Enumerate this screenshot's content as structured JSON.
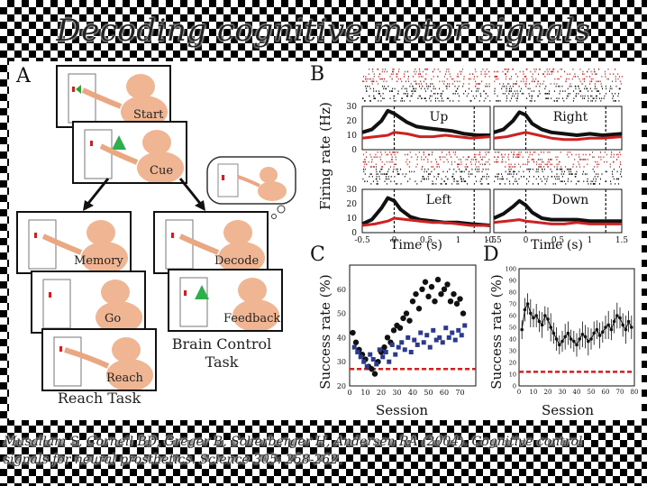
{
  "slide_title": "Decoding cognitive motor signals",
  "caption_lines": [
    "Musallam S, Corneil BD, Greger B, Scherberger H, Andersen RA (2004). Cognitive control",
    "signals for neural prosthetics. Science 305: 258-262."
  ],
  "panel_a": {
    "letter": "A",
    "boxes": [
      "Start",
      "Cue",
      "Memory",
      "Go",
      "Reach",
      "Decode",
      "Feedback"
    ],
    "reach_caption": "Reach Task",
    "brain_caption_lines": [
      "Brain Control",
      "Task"
    ]
  },
  "panel_b": {
    "letter": "B",
    "ylabel": "Firing rate (Hz)",
    "xlabel": "Time (s)",
    "subplots": [
      "Up",
      "Right",
      "Left",
      "Down"
    ],
    "xticks": [
      "-0.5",
      "0",
      "0.5",
      "1",
      "1.5"
    ],
    "yticks": [
      "0",
      "10",
      "20",
      "30"
    ]
  },
  "panel_c": {
    "letter": "C",
    "ylabel": "Success rate (%)",
    "xlabel": "Session"
  },
  "panel_d": {
    "letter": "D",
    "ylabel": "Success rate (%)",
    "xlabel": "Session"
  },
  "chart_data": [
    {
      "type": "line",
      "panel": "B",
      "xlabel": "Time (s)",
      "ylabel": "Firing rate (Hz)",
      "xlim": [
        -0.5,
        1.5
      ],
      "ylim": [
        0,
        30
      ],
      "subplots": [
        {
          "label": "Up",
          "series": [
            {
              "color": "#111111",
              "x": [
                -0.5,
                -0.35,
                -0.2,
                -0.1,
                0,
                0.1,
                0.2,
                0.35,
                0.5,
                0.7,
                0.9,
                1.1,
                1.3,
                1.5
              ],
              "y": [
                12,
                14,
                20,
                27,
                25,
                22,
                19,
                16,
                15,
                14,
                13,
                11,
                10,
                10
              ]
            },
            {
              "color": "#cc2222",
              "x": [
                -0.5,
                -0.3,
                -0.1,
                0,
                0.2,
                0.4,
                0.6,
                0.8,
                1.0,
                1.2,
                1.5
              ],
              "y": [
                8,
                9,
                10,
                12,
                11,
                9,
                9,
                10,
                9,
                8,
                9
              ]
            }
          ]
        },
        {
          "label": "Right",
          "series": [
            {
              "color": "#111111",
              "x": [
                -0.5,
                -0.35,
                -0.2,
                -0.1,
                0,
                0.1,
                0.25,
                0.4,
                0.6,
                0.8,
                1.0,
                1.2,
                1.5
              ],
              "y": [
                12,
                14,
                20,
                26,
                24,
                18,
                14,
                12,
                11,
                10,
                11,
                10,
                11
              ]
            },
            {
              "color": "#cc2222",
              "x": [
                -0.5,
                -0.3,
                -0.1,
                0,
                0.2,
                0.4,
                0.6,
                0.8,
                1.0,
                1.2,
                1.5
              ],
              "y": [
                8,
                9,
                11,
                12,
                10,
                8,
                7,
                7,
                8,
                8,
                9
              ]
            }
          ]
        },
        {
          "label": "Left",
          "series": [
            {
              "color": "#111111",
              "x": [
                -0.5,
                -0.35,
                -0.2,
                -0.1,
                0,
                0.1,
                0.25,
                0.4,
                0.6,
                0.8,
                1.0,
                1.2,
                1.5
              ],
              "y": [
                6,
                9,
                17,
                24,
                22,
                16,
                11,
                9,
                8,
                7,
                7,
                6,
                5
              ]
            },
            {
              "color": "#cc2222",
              "x": [
                -0.5,
                -0.3,
                -0.1,
                0,
                0.2,
                0.4,
                0.6,
                0.8,
                1.0,
                1.2,
                1.5
              ],
              "y": [
                5,
                6,
                8,
                10,
                9,
                8,
                7,
                7,
                6,
                5,
                5
              ]
            }
          ]
        },
        {
          "label": "Down",
          "series": [
            {
              "color": "#111111",
              "x": [
                -0.5,
                -0.35,
                -0.2,
                -0.1,
                0,
                0.1,
                0.25,
                0.4,
                0.6,
                0.8,
                1.0,
                1.2,
                1.5
              ],
              "y": [
                10,
                13,
                18,
                22,
                19,
                14,
                10,
                9,
                9,
                9,
                8,
                8,
                8
              ]
            },
            {
              "color": "#cc2222",
              "x": [
                -0.5,
                -0.3,
                -0.1,
                0,
                0.2,
                0.4,
                0.6,
                0.8,
                1.0,
                1.2,
                1.5
              ],
              "y": [
                7,
                8,
                9,
                8,
                7,
                6,
                6,
                7,
                6,
                6,
                6
              ]
            }
          ]
        }
      ]
    },
    {
      "type": "scatter",
      "panel": "C",
      "xlabel": "Session",
      "ylabel": "Success rate (%)",
      "xlim": [
        0,
        80
      ],
      "ylim": [
        20,
        70
      ],
      "xticks": [
        0,
        10,
        20,
        30,
        40,
        50,
        60,
        70
      ],
      "yticks": [
        20,
        30,
        40,
        50,
        60
      ],
      "chance_level": 27,
      "series": [
        {
          "color": "#111111",
          "marker": "circle",
          "x": [
            2,
            4,
            6,
            8,
            10,
            12,
            14,
            16,
            18,
            20,
            22,
            24,
            26,
            28,
            30,
            32,
            34,
            36,
            38,
            40,
            42,
            44,
            46,
            48,
            50,
            52,
            54,
            56,
            58,
            60,
            62,
            64,
            66,
            68,
            70,
            72
          ],
          "y": [
            42,
            38,
            35,
            33,
            31,
            28,
            27,
            25,
            30,
            34,
            36,
            40,
            38,
            43,
            45,
            44,
            48,
            50,
            47,
            55,
            58,
            52,
            60,
            63,
            57,
            61,
            55,
            64,
            58,
            60,
            62,
            55,
            58,
            54,
            56,
            50
          ]
        },
        {
          "color": "#2b3a8f",
          "marker": "square",
          "x": [
            3,
            5,
            7,
            9,
            11,
            13,
            15,
            17,
            19,
            21,
            23,
            25,
            27,
            29,
            31,
            33,
            35,
            37,
            39,
            41,
            43,
            45,
            47,
            49,
            51,
            53,
            55,
            57,
            59,
            61,
            63,
            65,
            67,
            69,
            71,
            73
          ],
          "y": [
            36,
            34,
            32,
            30,
            28,
            33,
            31,
            29,
            35,
            32,
            34,
            30,
            37,
            33,
            36,
            38,
            35,
            40,
            34,
            39,
            37,
            42,
            38,
            41,
            36,
            43,
            39,
            40,
            38,
            44,
            40,
            42,
            39,
            43,
            41,
            45
          ]
        }
      ]
    },
    {
      "type": "line",
      "panel": "D",
      "xlabel": "Session",
      "ylabel": "Success rate (%)",
      "xlim": [
        0,
        80
      ],
      "ylim": [
        0,
        100
      ],
      "xticks": [
        0,
        10,
        20,
        30,
        40,
        50,
        60,
        70,
        80
      ],
      "yticks": [
        0,
        10,
        20,
        30,
        40,
        50,
        60,
        70,
        80,
        90,
        100
      ],
      "chance_level": 12,
      "series": [
        {
          "color": "#111111",
          "x": [
            2,
            4,
            6,
            8,
            10,
            12,
            14,
            16,
            18,
            20,
            22,
            24,
            26,
            28,
            30,
            32,
            34,
            36,
            38,
            40,
            42,
            44,
            46,
            48,
            50,
            52,
            54,
            56,
            58,
            60,
            62,
            64,
            66,
            68,
            70,
            72,
            74,
            76,
            78
          ],
          "y": [
            48,
            65,
            70,
            62,
            58,
            60,
            55,
            52,
            60,
            57,
            50,
            45,
            40,
            35,
            38,
            42,
            45,
            40,
            38,
            35,
            40,
            44,
            42,
            38,
            40,
            45,
            48,
            43,
            46,
            50,
            52,
            48,
            55,
            60,
            58,
            52,
            48,
            55,
            50
          ],
          "err": [
            8,
            10,
            9,
            12,
            8,
            10,
            9,
            11,
            8,
            10,
            12,
            9,
            10,
            8,
            9,
            11,
            10,
            8,
            9,
            10,
            9,
            11,
            10,
            12,
            9,
            10,
            8,
            11,
            9,
            10,
            12,
            9,
            10,
            11,
            9,
            10,
            12,
            9,
            10
          ]
        }
      ]
    }
  ]
}
